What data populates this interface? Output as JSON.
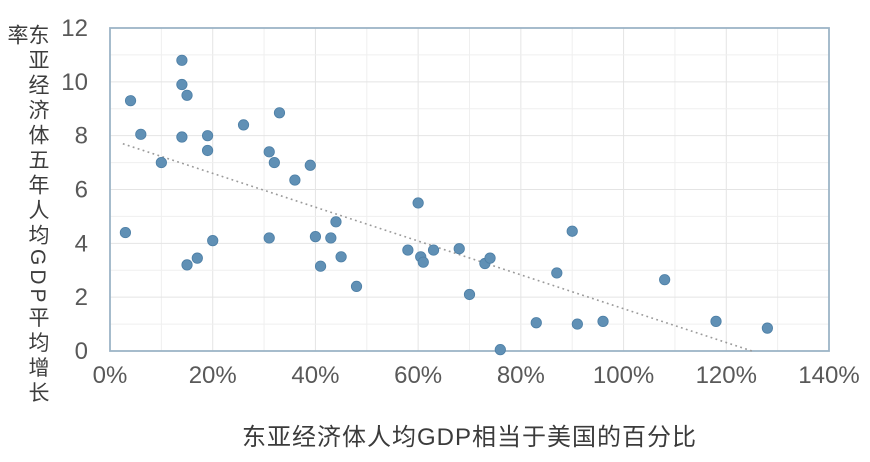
{
  "chart_data": {
    "type": "scatter",
    "title": "",
    "xlabel": "东亚经济体人均GDP相当于美国的百分比",
    "ylabel": "东亚经济体五年人均GDP平均增长率",
    "xlim": [
      0,
      140
    ],
    "ylim": [
      0,
      12
    ],
    "x_unit": "percent",
    "grid": "on",
    "x_grid_step": 10,
    "y_grid_step": 1,
    "x_ticks": [
      {
        "value": 0,
        "label": "0%"
      },
      {
        "value": 20,
        "label": "20%"
      },
      {
        "value": 40,
        "label": "40%"
      },
      {
        "value": 60,
        "label": "60%"
      },
      {
        "value": 80,
        "label": "80%"
      },
      {
        "value": 100,
        "label": "100%"
      },
      {
        "value": 120,
        "label": "120%"
      },
      {
        "value": 140,
        "label": "140%"
      }
    ],
    "y_ticks": [
      {
        "value": 0,
        "label": "0"
      },
      {
        "value": 2,
        "label": "2"
      },
      {
        "value": 4,
        "label": "4"
      },
      {
        "value": 6,
        "label": "6"
      },
      {
        "value": 8,
        "label": "8"
      },
      {
        "value": 10,
        "label": "10"
      },
      {
        "value": 12,
        "label": "12"
      }
    ],
    "points": [
      [
        3,
        4.4
      ],
      [
        4,
        9.3
      ],
      [
        6,
        8.05
      ],
      [
        10,
        7.0
      ],
      [
        14,
        10.8
      ],
      [
        14,
        9.9
      ],
      [
        14,
        7.95
      ],
      [
        15,
        9.5
      ],
      [
        15,
        3.2
      ],
      [
        17,
        3.45
      ],
      [
        19,
        8.0
      ],
      [
        19,
        7.45
      ],
      [
        20,
        4.1
      ],
      [
        26,
        8.4
      ],
      [
        31,
        7.4
      ],
      [
        31,
        4.2
      ],
      [
        32,
        7.0
      ],
      [
        33,
        8.85
      ],
      [
        36,
        6.35
      ],
      [
        39,
        6.9
      ],
      [
        40,
        4.25
      ],
      [
        41,
        3.15
      ],
      [
        43,
        4.2
      ],
      [
        44,
        4.8
      ],
      [
        45,
        3.5
      ],
      [
        48,
        2.4
      ],
      [
        58,
        3.75
      ],
      [
        60,
        5.5
      ],
      [
        60.5,
        3.5
      ],
      [
        61,
        3.3
      ],
      [
        63,
        3.75
      ],
      [
        68,
        3.8
      ],
      [
        70,
        2.1
      ],
      [
        73,
        3.25
      ],
      [
        74,
        3.45
      ],
      [
        76,
        0.05
      ],
      [
        83,
        1.05
      ],
      [
        87,
        2.9
      ],
      [
        90,
        4.45
      ],
      [
        91,
        1.0
      ],
      [
        96,
        1.1
      ],
      [
        108,
        2.65
      ],
      [
        118,
        1.1
      ],
      [
        128,
        0.85
      ]
    ],
    "trendline": {
      "style": "dotted",
      "x1": 2.5,
      "y1": 7.7,
      "x2": 125,
      "y2": 0
    },
    "legend": "none",
    "colors": {
      "point_fill": "#6090b5",
      "point_stroke": "#4d7fa6",
      "trend": "#9a9a9a",
      "grid_minor": "#efefef",
      "grid_major": "#e4e4e4",
      "plot_border": "#9db4c6",
      "tick_text": "#595959",
      "axis_title_text": "#3b3b3b"
    }
  }
}
